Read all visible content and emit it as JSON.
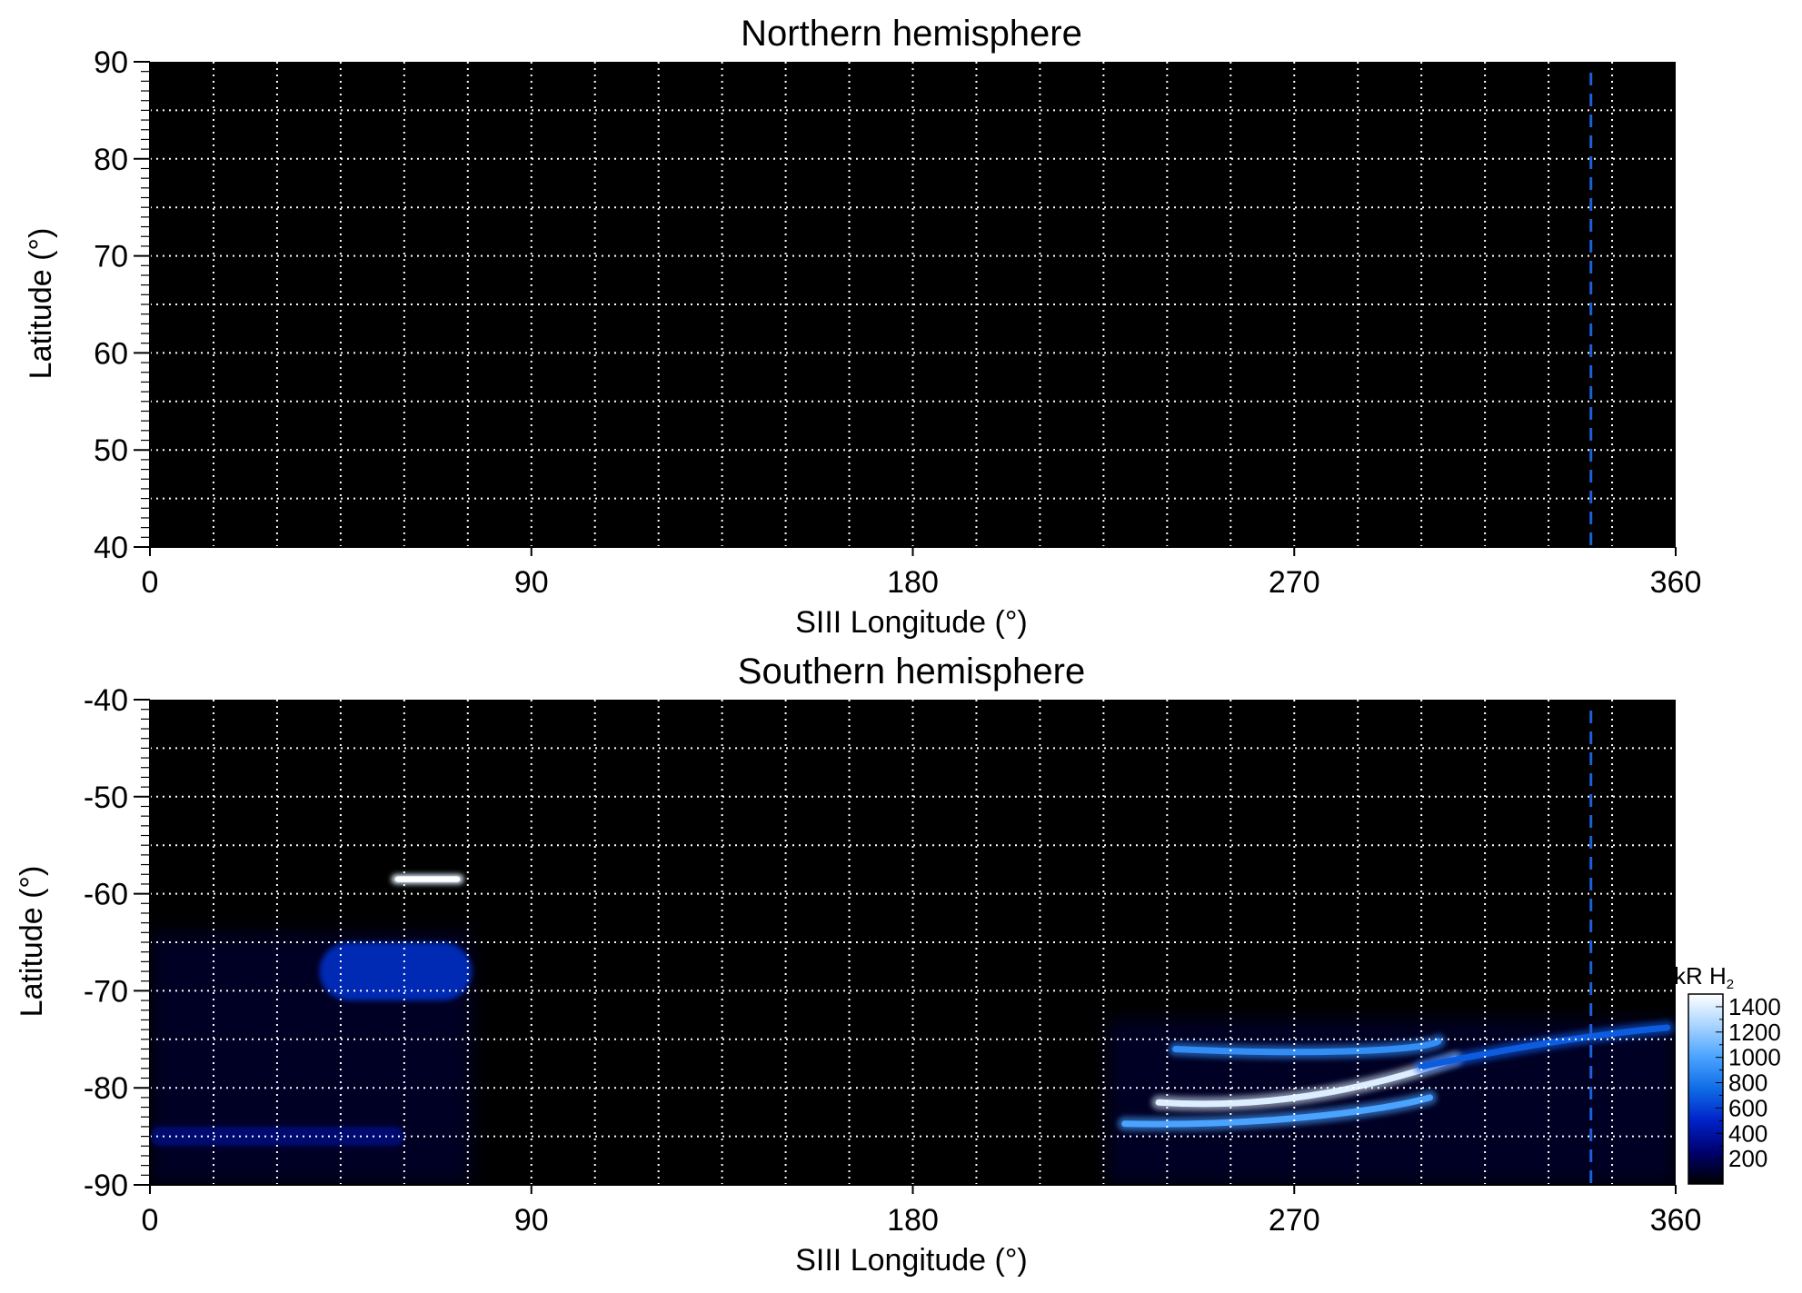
{
  "chart_data": [
    {
      "type": "heatmap",
      "title": "Northern hemisphere",
      "xlabel": "SIII Longitude (°)",
      "ylabel": "Latitude (°)",
      "xlim": [
        0,
        360
      ],
      "ylim": [
        40,
        90
      ],
      "xticks": [
        0,
        90,
        180,
        270,
        360
      ],
      "yticks": [
        40,
        50,
        60,
        70,
        80,
        90
      ],
      "grid": true,
      "grid_x_step": 15,
      "grid_y_step": 5,
      "reference_line": {
        "longitude": 340,
        "style": "dashed",
        "color": "#1c5fd6"
      },
      "emission": [],
      "background_color": "#000000"
    },
    {
      "type": "heatmap",
      "title": "Southern hemisphere",
      "xlabel": "SIII Longitude (°)",
      "ylabel": "Latitude (°)",
      "xlim": [
        0,
        360
      ],
      "ylim": [
        -90,
        -40
      ],
      "xticks": [
        0,
        90,
        180,
        270,
        360
      ],
      "yticks": [
        -90,
        -80,
        -70,
        -60,
        -50,
        -40
      ],
      "grid": true,
      "grid_x_step": 15,
      "grid_y_step": 5,
      "reference_line": {
        "longitude": 340,
        "style": "dashed",
        "color": "#1c5fd6"
      },
      "background_color": "#000000",
      "emission": [
        {
          "kind": "region",
          "lon": [
            0,
            76
          ],
          "lat": [
            -90,
            -64
          ],
          "value": 150
        },
        {
          "kind": "band",
          "lon": [
            0,
            60
          ],
          "lat": [
            -86,
            -84
          ],
          "value": 300
        },
        {
          "kind": "band",
          "lon": [
            40,
            76
          ],
          "lat": [
            -71,
            -65
          ],
          "value": 550
        },
        {
          "kind": "spot",
          "lon": [
            57,
            74
          ],
          "lat": [
            -59,
            -58
          ],
          "value": 1400
        },
        {
          "kind": "region",
          "lon": [
            226,
            360
          ],
          "lat": [
            -90,
            -73
          ],
          "value": 150
        },
        {
          "kind": "arc",
          "points": [
            [
              242,
              -76
            ],
            [
              270,
              -76.6
            ],
            [
              300,
              -76.3
            ],
            [
              304,
              -75.2
            ]
          ],
          "value": 900
        },
        {
          "kind": "arc",
          "points": [
            [
              238,
              -81.5
            ],
            [
              262,
              -82.2
            ],
            [
              285,
              -80.5
            ],
            [
              308,
              -77
            ]
          ],
          "value": 1400
        },
        {
          "kind": "arc",
          "points": [
            [
              230,
              -83.7
            ],
            [
              260,
              -84
            ],
            [
              290,
              -82.5
            ],
            [
              302,
              -81
            ]
          ],
          "value": 1000
        },
        {
          "kind": "arc",
          "points": [
            [
              300,
              -77.8
            ],
            [
              320,
              -76
            ],
            [
              340,
              -74.5
            ],
            [
              358,
              -73.8
            ]
          ],
          "value": 700
        }
      ]
    }
  ],
  "colorbar": {
    "label": "kR H",
    "label_subscript": "2",
    "range": [
      0,
      1500
    ],
    "ticks": [
      200,
      400,
      600,
      800,
      1000,
      1200,
      1400
    ],
    "colors": [
      "#000000",
      "#00006e",
      "#0022c8",
      "#0f6be6",
      "#4aa3ff",
      "#a7d4ff",
      "#ffffff"
    ]
  }
}
